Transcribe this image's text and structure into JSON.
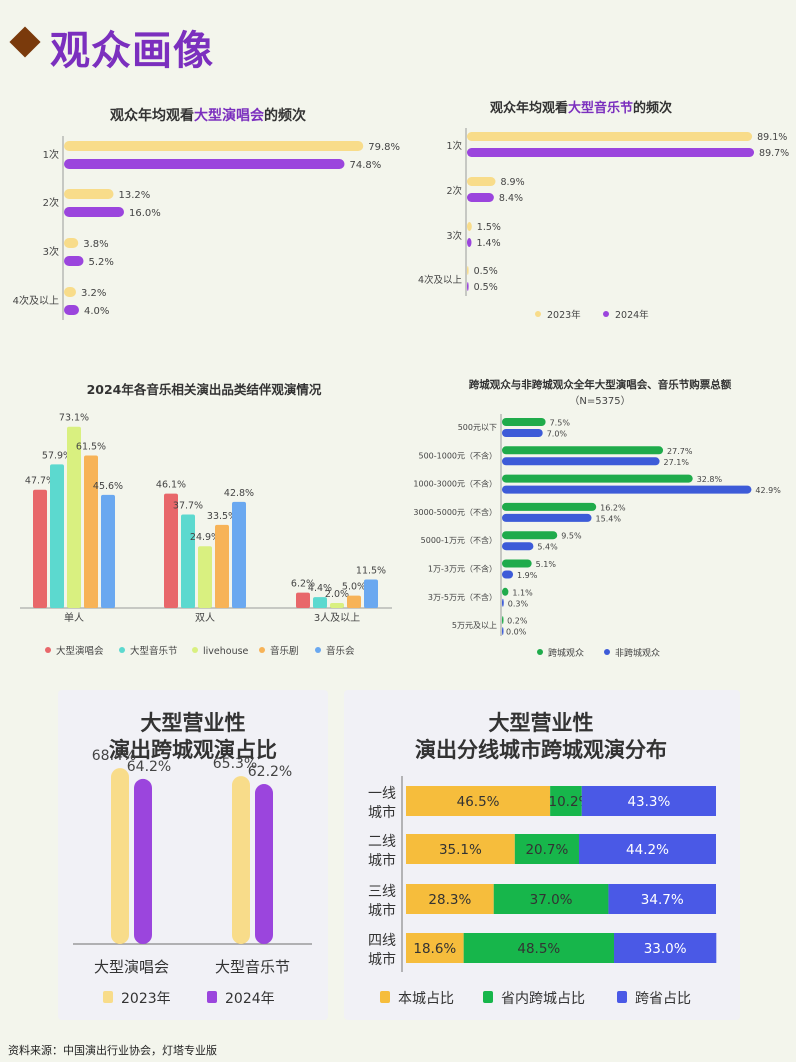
{
  "page_title": "观众画像",
  "source": "资料来源：中国演出行业协会，灯塔专业版",
  "colors": {
    "accent": "#7b2fbe",
    "y2023": "#f8dc8a",
    "y2024": "#9b45dd",
    "cross_city": "#1fab4b",
    "non_cross_city": "#3d5bd8",
    "local": "#f6bd3c",
    "in_province": "#17b64b",
    "cross_province": "#4a59e6"
  },
  "chart_data": [
    {
      "id": "concert_freq",
      "type": "bar",
      "orientation": "horizontal",
      "title_parts": [
        "观众年均观看",
        "大型演唱会",
        "的频次"
      ],
      "categories": [
        "1次",
        "2次",
        "3次",
        "4次及以上"
      ],
      "series": [
        {
          "values": [
            79.8,
            13.2,
            3.8,
            3.2
          ],
          "labels": [
            "79.8%",
            "13.2%",
            "3.8%",
            "3.2%"
          ]
        },
        {
          "values": [
            74.8,
            16.0,
            5.2,
            4.0
          ],
          "labels": [
            "74.8%",
            "16.0%",
            "5.2%",
            "4.0%"
          ]
        }
      ],
      "xlim": [
        0,
        80
      ]
    },
    {
      "id": "festival_freq",
      "type": "bar",
      "orientation": "horizontal",
      "title_parts": [
        "观众年均观看",
        "大型音乐节",
        "的频次"
      ],
      "categories": [
        "1次",
        "2次",
        "3次",
        "4次及以上"
      ],
      "series": [
        {
          "name": "2023年",
          "values": [
            89.1,
            8.9,
            1.5,
            0.5
          ],
          "labels": [
            "89.1%",
            "8.9%",
            "1.5%",
            "0.5%"
          ]
        },
        {
          "name": "2024年",
          "values": [
            89.7,
            8.4,
            1.4,
            0.5
          ],
          "labels": [
            "89.7%",
            "8.4%",
            "1.4%",
            "0.5%"
          ]
        }
      ],
      "xlim": [
        0,
        90
      ],
      "legend": "bottom"
    },
    {
      "id": "companion",
      "type": "bar",
      "title": "2024年各音乐相关演出品类结伴观演情况",
      "categories": [
        "单人",
        "双人",
        "3人及以上"
      ],
      "series": [
        {
          "name": "大型演唱会",
          "values": [
            47.7,
            46.1,
            6.2
          ],
          "labels": [
            "47.7%",
            "46.1%",
            "6.2%"
          ]
        },
        {
          "name": "大型音乐节",
          "values": [
            57.9,
            37.7,
            4.4
          ],
          "labels": [
            "57.9%",
            "37.7%",
            "4.4%"
          ]
        },
        {
          "name": "livehouse",
          "values": [
            73.1,
            24.9,
            2.0
          ],
          "labels": [
            "73.1%",
            "24.9%",
            "2.0%"
          ]
        },
        {
          "name": "音乐剧",
          "values": [
            61.5,
            33.5,
            5.0
          ],
          "labels": [
            "61.5%",
            "33.5%",
            "5.0%"
          ]
        },
        {
          "name": "音乐会",
          "values": [
            45.6,
            42.8,
            11.5
          ],
          "labels": [
            "45.6%",
            "42.8%",
            "11.5%"
          ]
        }
      ],
      "ylim": [
        0,
        75
      ],
      "legend": "bottom"
    },
    {
      "id": "ticket_spend",
      "type": "bar",
      "orientation": "horizontal",
      "title": "跨城观众与非跨城观众全年大型演唱会、音乐节购票总额",
      "subtitle": "（N=5375）",
      "categories": [
        "500元以下",
        "500-1000元（不含）",
        "1000-3000元（不含）",
        "3000-5000元（不含）",
        "5000-1万元（不含）",
        "1万-3万元（不含）",
        "3万-5万元（不含）",
        "5万元及以上"
      ],
      "series": [
        {
          "name": "跨城观众",
          "values": [
            7.5,
            27.7,
            32.8,
            16.2,
            9.5,
            5.1,
            1.1,
            0.2
          ],
          "labels": [
            "7.5%",
            "27.7%",
            "32.8%",
            "16.2%",
            "9.5%",
            "5.1%",
            "1.1%",
            "0.2%"
          ]
        },
        {
          "name": "非跨城观众",
          "values": [
            7.0,
            27.1,
            42.9,
            15.4,
            5.4,
            1.9,
            0.3,
            0.0
          ],
          "labels": [
            "7.0%",
            "27.1%",
            "42.9%",
            "15.4%",
            "5.4%",
            "1.9%",
            "0.3%",
            "0.0%"
          ]
        }
      ],
      "xlim": [
        0,
        43
      ],
      "legend": "bottom"
    },
    {
      "id": "cross_city_share",
      "type": "bar",
      "title_lines": [
        "大型营业性",
        "演出跨城观演占比"
      ],
      "categories": [
        "大型演唱会",
        "大型音乐节"
      ],
      "series": [
        {
          "name": "2023年",
          "values": [
            68.4,
            65.3
          ],
          "labels": [
            "68.4%",
            "65.3%"
          ]
        },
        {
          "name": "2024年",
          "values": [
            64.2,
            62.2
          ],
          "labels": [
            "64.2%",
            "62.2%"
          ]
        }
      ],
      "ylim": [
        0,
        70
      ],
      "legend": "bottom"
    },
    {
      "id": "tier_distribution",
      "type": "bar",
      "orientation": "horizontal",
      "stacked": true,
      "title_lines": [
        "大型营业性",
        "演出分线城市跨城观演分布"
      ],
      "categories": [
        [
          "一线",
          "城市"
        ],
        [
          "二线",
          "城市"
        ],
        [
          "三线",
          "城市"
        ],
        [
          "四线",
          "城市"
        ]
      ],
      "series": [
        {
          "name": "本城占比",
          "values": [
            46.5,
            35.1,
            28.3,
            18.6
          ],
          "labels": [
            "46.5%",
            "35.1%",
            "28.3%",
            "18.6%"
          ]
        },
        {
          "name": "省内跨城占比",
          "values": [
            10.2,
            20.7,
            37.0,
            48.5
          ],
          "labels": [
            "10.2%",
            "20.7%",
            "37.0%",
            "48.5%"
          ]
        },
        {
          "name": "跨省占比",
          "values": [
            43.3,
            44.2,
            34.7,
            33.0
          ],
          "labels": [
            "43.3%",
            "44.2%",
            "34.7%",
            "33.0%"
          ]
        }
      ],
      "legend": "bottom"
    }
  ]
}
